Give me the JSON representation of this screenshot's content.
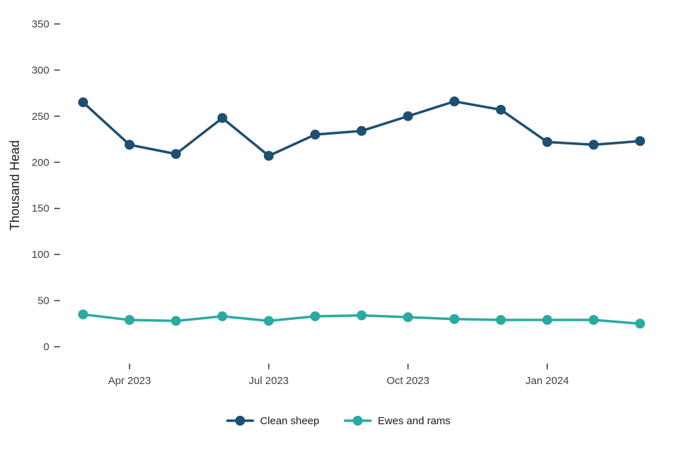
{
  "chart_data": {
    "type": "line",
    "title": "",
    "xlabel": "",
    "ylabel": "Thousand Head",
    "ylim": [
      0,
      350
    ],
    "y_ticks": [
      0,
      50,
      100,
      150,
      200,
      250,
      300,
      350
    ],
    "x_tick_labels": [
      "Apr 2023",
      "Jul 2023",
      "Oct 2023",
      "Jan 2024"
    ],
    "x_tick_indices": [
      1,
      4,
      7,
      10
    ],
    "grid": false,
    "legend_position": "bottom",
    "series": [
      {
        "name": "Clean sheep",
        "color": "#1d4f71",
        "values": [
          265,
          219,
          209,
          248,
          207,
          230,
          234,
          250,
          266,
          257,
          222,
          219,
          223
        ]
      },
      {
        "name": "Ewes and rams",
        "color": "#2baaa0",
        "values": [
          35,
          29,
          28,
          33,
          28,
          33,
          34,
          32,
          30,
          29,
          29,
          29,
          25
        ]
      }
    ]
  }
}
